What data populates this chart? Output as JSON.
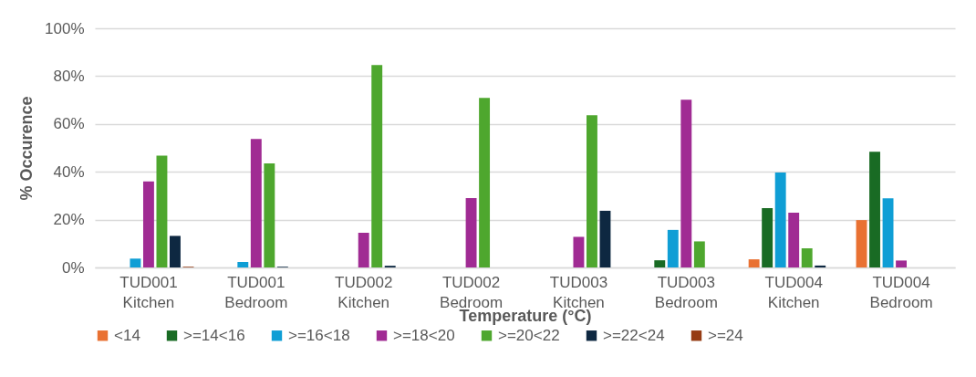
{
  "chart_data": {
    "type": "bar",
    "xlabel": "Temperature (°C)",
    "ylabel": "% Occurence",
    "categories": [
      "TUD001 Kitchen",
      "TUD001 Bedroom",
      "TUD002 Kitchen",
      "TUD002 Bedroom",
      "TUD003 Kitchen",
      "TUD003 Bedroom",
      "TUD004 Kitchen",
      "TUD004 Bedroom"
    ],
    "series": [
      {
        "name": "<14",
        "color": "#e97132",
        "values": [
          0,
          0,
          0,
          0,
          0,
          0,
          3.4,
          19.8
        ]
      },
      {
        "name": ">=14<16",
        "color": "#196b24",
        "values": [
          0,
          0,
          0,
          0,
          0,
          3,
          24.8,
          48.4
        ]
      },
      {
        "name": ">=16<18",
        "color": "#0f9ed5",
        "values": [
          3.7,
          2.3,
          0,
          0,
          0,
          15.7,
          39.7,
          28.9
        ]
      },
      {
        "name": ">=18<20",
        "color": "#a02b93",
        "values": [
          36,
          53.7,
          14.5,
          29,
          12.8,
          70.1,
          22.9,
          2.9
        ]
      },
      {
        "name": ">=20<22",
        "color": "#4ea72e",
        "values": [
          46.8,
          43.5,
          84.6,
          70.9,
          63.6,
          10.9,
          8,
          0
        ]
      },
      {
        "name": ">=22<24",
        "color": "#0e2841",
        "values": [
          13.2,
          0.3,
          0.7,
          0,
          23.7,
          0,
          0.8,
          0
        ]
      },
      {
        "name": ">=24",
        "color": "#963c14",
        "values": [
          0.3,
          0,
          0,
          0,
          0,
          0,
          0,
          0
        ]
      }
    ],
    "ylim": [
      0,
      100
    ],
    "yticks": [
      {
        "value": 0,
        "label": "0%"
      },
      {
        "value": 20,
        "label": "20%"
      },
      {
        "value": 40,
        "label": "40%"
      },
      {
        "value": 60,
        "label": "60%"
      },
      {
        "value": 80,
        "label": "80%"
      },
      {
        "value": 100,
        "label": "100%"
      }
    ],
    "grid": "y",
    "legend": "bottom"
  }
}
